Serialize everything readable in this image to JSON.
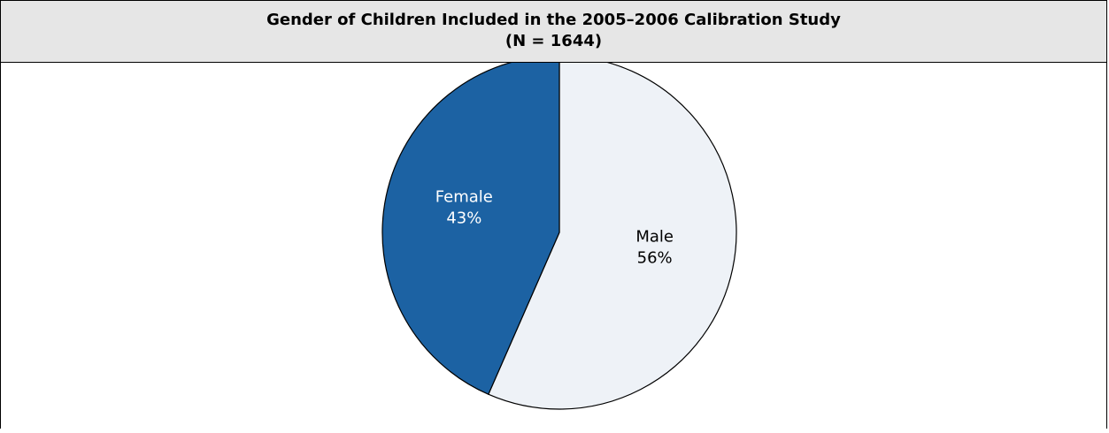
{
  "chart_data": {
    "type": "pie",
    "title": "Gender of Children Included in the 2005–2006 Calibration Study",
    "subtitle": "(N = 1644)",
    "slices": [
      {
        "label": "Male",
        "value": 56,
        "value_label": "56%",
        "color": "#eef2f7"
      },
      {
        "label": "Female",
        "value": 43,
        "value_label": "43%",
        "color": "#1c62a3"
      }
    ],
    "start": "12 o'clock",
    "direction": "clockwise",
    "slice_label_colors": {
      "Male": "#000000",
      "Female": "#ffffff"
    },
    "outline_color": "#000000",
    "header_background": "#e6e6e6"
  }
}
